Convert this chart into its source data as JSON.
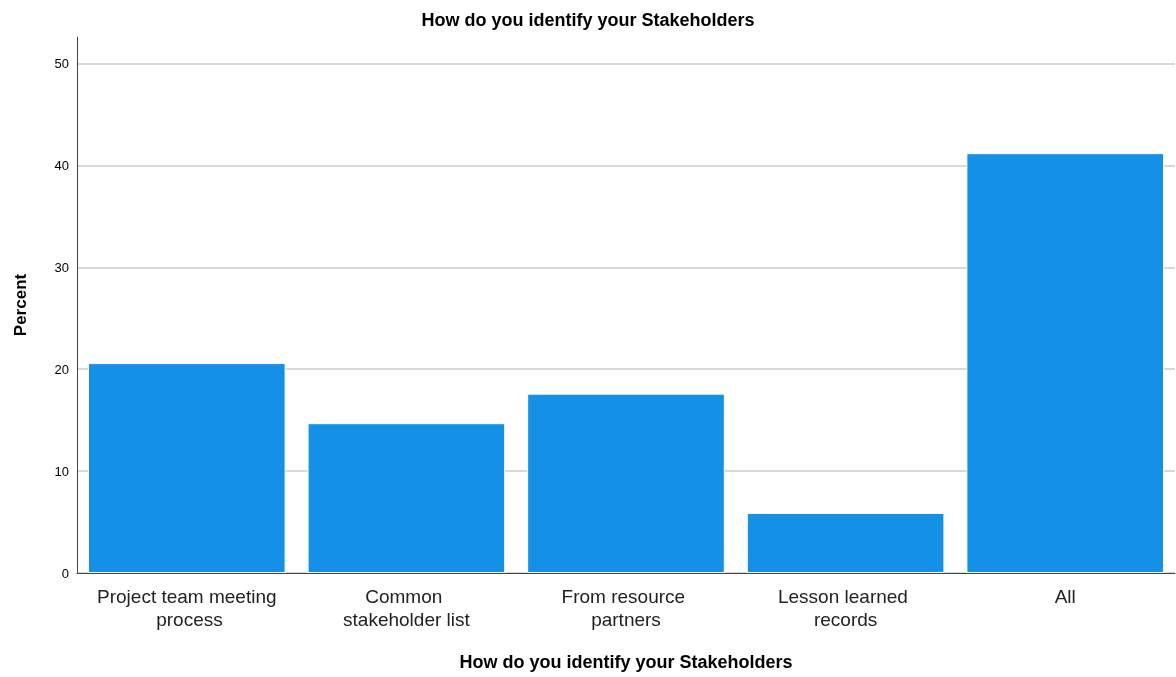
{
  "chart_data": {
    "type": "bar",
    "title": "How do you identify your Stakeholders",
    "xlabel": "How do you identify your Stakeholders",
    "ylabel": "Percent",
    "categories": [
      "Project team meeting process",
      "Common stakeholder list",
      "From resource partners",
      "Lesson learned records",
      "All"
    ],
    "values": [
      20.6,
      14.7,
      17.6,
      5.9,
      41.2
    ],
    "color": "#1490e6",
    "ylim": [
      0,
      52.6
    ],
    "yticks": [
      0,
      10,
      20,
      30,
      40,
      50
    ],
    "grid": "y"
  }
}
